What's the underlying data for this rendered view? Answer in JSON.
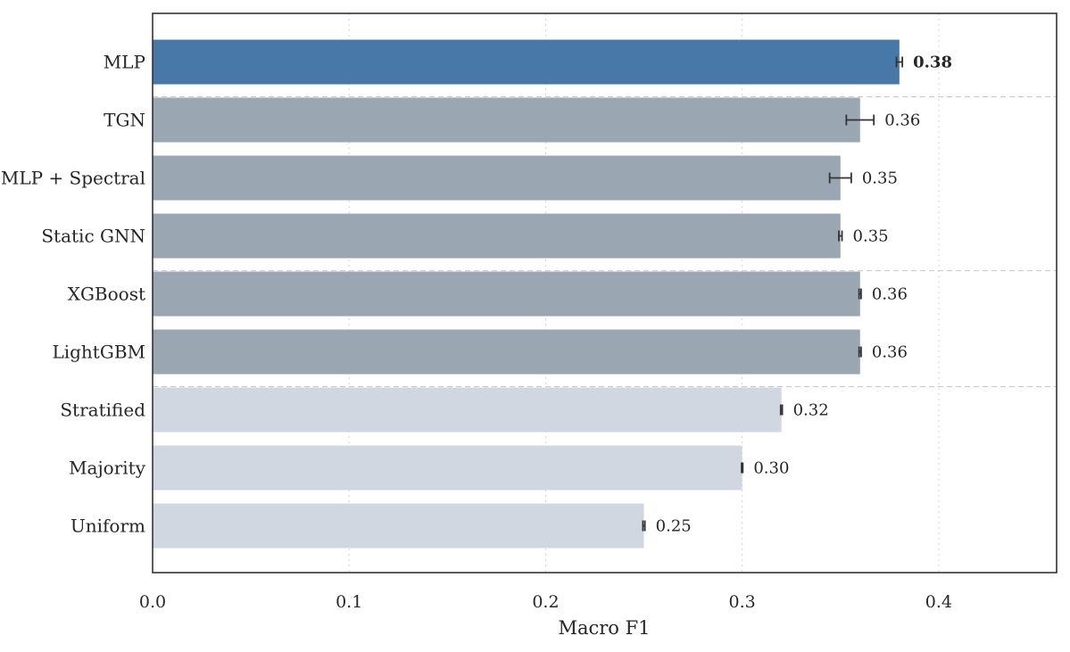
{
  "chart_data": {
    "type": "bar",
    "orientation": "horizontal",
    "title": "",
    "xlabel": "Macro F1",
    "ylabel": "",
    "xlim": [
      0,
      0.46
    ],
    "xticks": [
      0.0,
      0.1,
      0.2,
      0.3,
      0.4
    ],
    "xtick_labels": [
      "0.0",
      "0.1",
      "0.2",
      "0.3",
      "0.4"
    ],
    "grid": "vertical dotted",
    "legend": "none",
    "categories": [
      "MLP",
      "TGN",
      "MLP + Spectral",
      "Static GNN",
      "XGBoost",
      "LightGBM",
      "Stratified",
      "Majority",
      "Uniform"
    ],
    "values": [
      0.38,
      0.36,
      0.35,
      0.35,
      0.36,
      0.36,
      0.32,
      0.3,
      0.25
    ],
    "errors": [
      0.0015,
      0.007,
      0.0055,
      0.0008,
      0.0005,
      0.0005,
      0.0004,
      0.0003,
      0.0005
    ],
    "value_labels": [
      "0.38",
      "0.36",
      "0.35",
      "0.35",
      "0.36",
      "0.36",
      "0.32",
      "0.30",
      "0.25"
    ],
    "bar_groups": [
      "best",
      "model",
      "model",
      "model",
      "model",
      "model",
      "baseline",
      "baseline",
      "baseline"
    ],
    "group_separators_after": [
      0,
      3,
      5
    ],
    "colors": {
      "best": "#4878a8",
      "model": "#9aa6b2",
      "baseline": "#d0d7e1",
      "errorbar": "#333333",
      "grid": "#d4d4d4",
      "separator": "#c8c8c8",
      "frame": "#333333"
    }
  }
}
